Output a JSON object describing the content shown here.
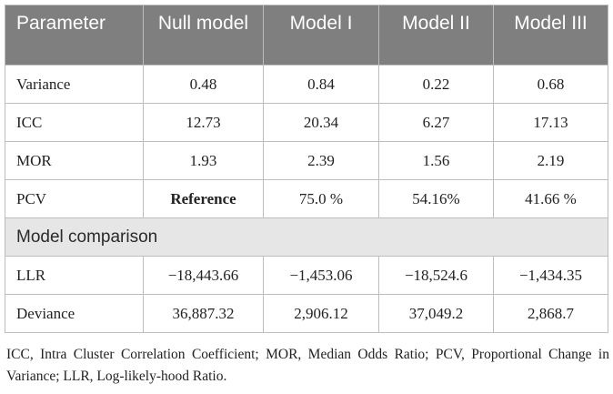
{
  "table": {
    "headers": [
      "Parameter",
      "Null model",
      "Model I",
      "Model II",
      "Model III"
    ],
    "rows": [
      [
        "Variance",
        "0.48",
        "0.84",
        "0.22",
        "0.68"
      ],
      [
        "ICC",
        "12.73",
        "20.34",
        "6.27",
        "17.13"
      ],
      [
        "MOR",
        "1.93",
        "2.39",
        "1.56",
        "2.19"
      ],
      [
        "PCV",
        "Reference",
        "75.0 %",
        "54.16%",
        "41.66 %"
      ]
    ],
    "section_label": "Model comparison",
    "comparison_rows": [
      [
        "LLR",
        "−18,443.66",
        "−1,453.06",
        "−18,524.6",
        "−1,434.35"
      ],
      [
        "Deviance",
        "36,887.32",
        "2,906.12",
        "37,049.2",
        "2,868.7"
      ]
    ]
  },
  "footnote": "ICC, Intra Cluster Correlation Coefficient; MOR, Median Odds Ratio; PCV, Proportional Change in Variance; LLR, Log-likely-hood Ratio."
}
